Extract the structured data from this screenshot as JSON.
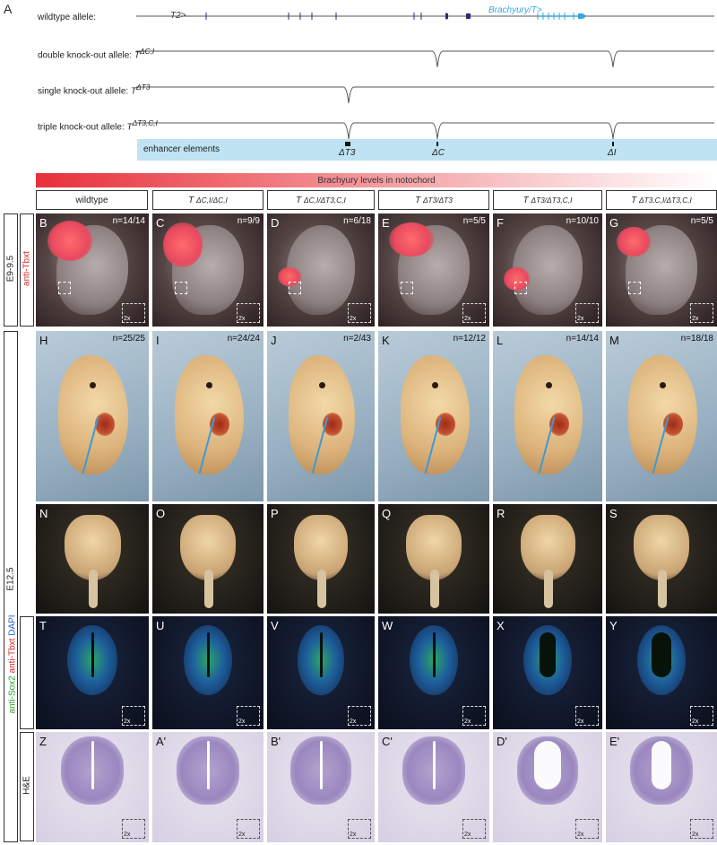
{
  "figure": {
    "panel_a_letter": "A",
    "alleles": {
      "wildtype": {
        "label": "wildtype allele:",
        "t2": "T2>",
        "brachyury": "Brachyury/T>"
      },
      "double": {
        "label": "double knock-out allele: ",
        "sym": "T",
        "sup": "ΔC,I"
      },
      "single": {
        "label": "single knock-out allele: ",
        "sym": "T",
        "sup": "ΔT3"
      },
      "triple": {
        "label": "triple knock-out allele: ",
        "sym": "T",
        "sup": "ΔT3,C,I"
      }
    },
    "enhancer": {
      "label": "enhancer elements",
      "t3": "ΔT3",
      "c": "ΔC",
      "i": "ΔI"
    },
    "gradient_label": "Brachyury levels in notochord",
    "columns": [
      {
        "label": "wildtype",
        "sym": "",
        "sup": "",
        "tail": ""
      },
      {
        "label": "",
        "sym": "T",
        "sup": "ΔC,I/ΔC,I",
        "tail": ""
      },
      {
        "label": "",
        "sym": "T",
        "sup": "ΔC,I/ΔT3,C,I",
        "tail": ""
      },
      {
        "label": "",
        "sym": "T",
        "sup": "ΔT3/ΔT3",
        "tail": ""
      },
      {
        "label": "",
        "sym": "T",
        "sup": "ΔT3/ΔT3,C,I",
        "tail": ""
      },
      {
        "label": "",
        "sym": "T",
        "sup": "ΔT3,C,I/ΔT3,C,I",
        "tail": ""
      }
    ],
    "stages": {
      "e9": "E9-9.5",
      "e12": "E12.5"
    },
    "row_labels": {
      "tbxt": "anti-Tbxt",
      "sox": "anti-Sox2",
      "tbxt2": "anti-Tbxt",
      "dapi": "DAPI",
      "he": "H&E"
    },
    "rows": [
      {
        "panels": [
          "B",
          "C",
          "D",
          "E",
          "F",
          "G"
        ],
        "counts": [
          "n=14/14",
          "n=9/9",
          "n=6/18",
          "n=5/5",
          "n=10/10",
          "n=5/5"
        ]
      },
      {
        "panels": [
          "H",
          "I",
          "J",
          "K",
          "L",
          "M"
        ],
        "counts": [
          "n=25/25",
          "n=24/24",
          "n=2/43",
          "n=12/12",
          "n=14/14",
          "n=18/18"
        ]
      },
      {
        "panels": [
          "N",
          "O",
          "P",
          "Q",
          "R",
          "S"
        ],
        "counts": [
          "",
          "",
          "",
          "",
          "",
          ""
        ]
      },
      {
        "panels": [
          "T",
          "U",
          "V",
          "W",
          "X",
          "Y"
        ],
        "counts": [
          "",
          "",
          "",
          "",
          "",
          ""
        ]
      },
      {
        "panels": [
          "Z",
          "A'",
          "B'",
          "C'",
          "D'",
          "E'"
        ],
        "counts": [
          "",
          "",
          "",
          "",
          "",
          ""
        ]
      }
    ],
    "inset_label": "2x"
  }
}
